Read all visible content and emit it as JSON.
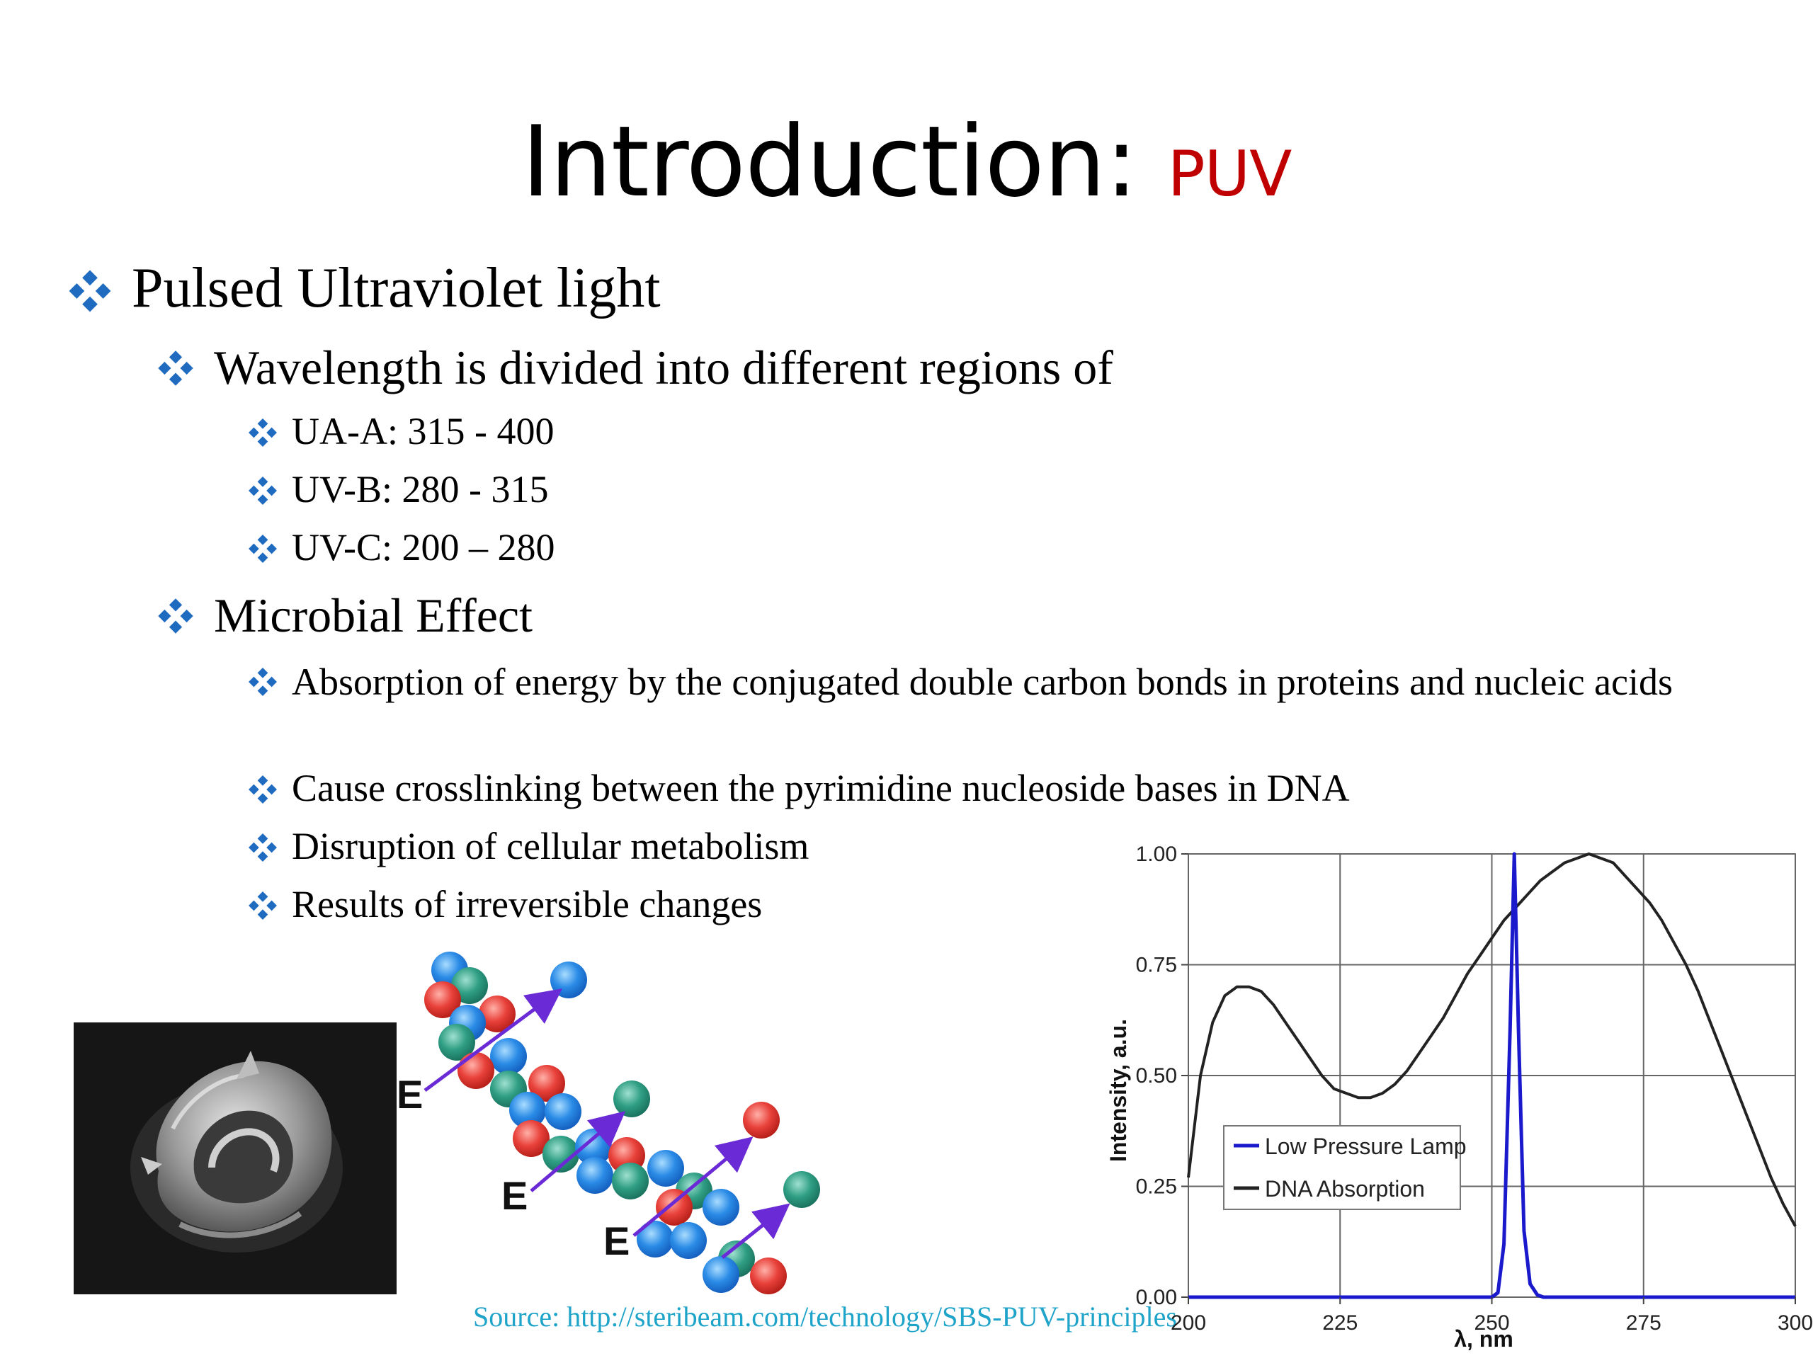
{
  "slide": {
    "title_main": "Introduction: ",
    "title_accent": "PUV",
    "bullets": [
      {
        "level": 1,
        "text": "Pulsed Ultraviolet light"
      },
      {
        "level": 2,
        "text": "Wavelength is divided into different regions of"
      },
      {
        "level": 3,
        "text": "UA-A: 315 - 400"
      },
      {
        "level": 3,
        "text": "UV-B: 280 - 315"
      },
      {
        "level": 3,
        "text": "UV-C: 200 – 280"
      },
      {
        "level": 2,
        "text": "Microbial Effect"
      },
      {
        "level": 3,
        "text": "Absorption of energy by the conjugated double carbon bonds in proteins and nucleic acids"
      },
      {
        "level": 3,
        "text": "Cause crosslinking between the pyrimidine nucleoside bases in DNA"
      },
      {
        "level": 3,
        "text": "Disruption of cellular metabolism"
      },
      {
        "level": 3,
        "text": "Results of irreversible changes"
      }
    ],
    "source": "Source: http://steribeam.com/technology/SBS-PUV-principles",
    "diagram": {
      "energy_label": "E"
    },
    "colors": {
      "accent": "#c00000",
      "bullet": "#1f6bbf",
      "source": "#1ea3c9"
    }
  },
  "chart_data": {
    "type": "line",
    "xlabel": "λ, nm",
    "ylabel": "Intensity, a.u.",
    "xlim": [
      200,
      300
    ],
    "ylim": [
      0,
      1
    ],
    "xticks": [
      200,
      225,
      250,
      275,
      300
    ],
    "yticks": [
      "0.00",
      "0.25",
      "0.50",
      "0.75",
      "1.00"
    ],
    "grid": true,
    "legend_position": "bottom-left",
    "series": [
      {
        "name": "Low Pressure Lamp",
        "color": "#1a1acc",
        "x": [
          200,
          250,
          251,
          252,
          253,
          253.7,
          254.4,
          255.3,
          256.3,
          257.5,
          258.5,
          300
        ],
        "y": [
          0,
          0,
          0.01,
          0.12,
          0.6,
          1.0,
          0.6,
          0.15,
          0.03,
          0.005,
          0,
          0
        ]
      },
      {
        "name": "DNA Absorption",
        "color": "#222222",
        "x": [
          200,
          202,
          204,
          206,
          208,
          210,
          212,
          214,
          216,
          218,
          220,
          222,
          224,
          226,
          228,
          230,
          232,
          234,
          236,
          238,
          240,
          242,
          244,
          246,
          248,
          250,
          252,
          254,
          256,
          258,
          260,
          262,
          264,
          266,
          268,
          270,
          272,
          274,
          276,
          278,
          280,
          282,
          284,
          286,
          288,
          290,
          292,
          294,
          296,
          298,
          300
        ],
        "y": [
          0.27,
          0.5,
          0.62,
          0.68,
          0.7,
          0.7,
          0.69,
          0.66,
          0.62,
          0.58,
          0.54,
          0.5,
          0.47,
          0.46,
          0.45,
          0.45,
          0.46,
          0.48,
          0.51,
          0.55,
          0.59,
          0.63,
          0.68,
          0.73,
          0.77,
          0.81,
          0.85,
          0.88,
          0.91,
          0.94,
          0.96,
          0.98,
          0.99,
          1.0,
          0.99,
          0.98,
          0.95,
          0.92,
          0.89,
          0.85,
          0.8,
          0.75,
          0.69,
          0.62,
          0.55,
          0.48,
          0.41,
          0.34,
          0.27,
          0.21,
          0.16
        ]
      }
    ]
  }
}
